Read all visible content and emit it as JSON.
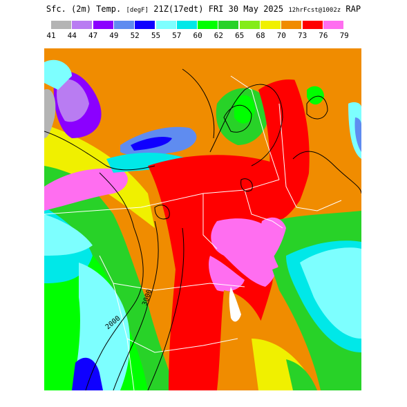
{
  "header": {
    "field": "Sfc. (2m) Temp.",
    "units": "[degF]",
    "valid_time": "21Z(17edt) FRI 30 May 2025",
    "forecast_info": "12hrFcst@1002z",
    "model": "RAP"
  },
  "legend": {
    "levels": [
      "41",
      "44",
      "47",
      "49",
      "52",
      "55",
      "57",
      "60",
      "62",
      "65",
      "68",
      "70",
      "73",
      "76",
      "79"
    ],
    "colors": [
      "#b4b4b4",
      "#b97cf2",
      "#8b00ff",
      "#5f8cf0",
      "#0f00ff",
      "#7dffff",
      "#00e8e8",
      "#00ff00",
      "#28d228",
      "#84ec18",
      "#f0f000",
      "#f08c00",
      "#ff0000",
      "#ff6ef0"
    ]
  },
  "map": {
    "contour_labels": [
      "2000",
      "3000"
    ],
    "colors": {
      "state_border": "#ffffff",
      "height_contour": "#000000"
    }
  }
}
